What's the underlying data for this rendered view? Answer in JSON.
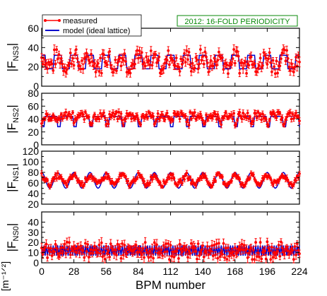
{
  "chart_data": {
    "type": "line",
    "annotation": "2012: 16-FOLD PERIODICITY",
    "annotation_color": "#0a8a0a",
    "legend": {
      "placement": "top-left",
      "entries": [
        {
          "label": "measured",
          "color": "#ff0000",
          "marker": "circle-with-errorbars"
        },
        {
          "label": "model (ideal lattice)",
          "color": "#0000cc",
          "marker": "line"
        }
      ]
    },
    "xlabel": "BPM number",
    "xlim": [
      0,
      224
    ],
    "xticks": [
      0,
      28,
      56,
      84,
      112,
      140,
      168,
      196,
      224
    ],
    "units_label": "[m⁻¹ᐟ²]",
    "panels": [
      {
        "ylabel_main": "|F",
        "ylabel_sub": "NS3",
        "ylabel_end": "|",
        "ylim": [
          0,
          60
        ],
        "yticks": [
          "0",
          "20",
          "40",
          "60"
        ],
        "model": {
          "kind": "steps",
          "low": 18,
          "high": 32
        },
        "measured": {
          "base": 27,
          "spread": 9,
          "err": 4
        }
      },
      {
        "ylabel_main": "|F",
        "ylabel_sub": "NS2",
        "ylabel_end": "|",
        "ylim": [
          0,
          80
        ],
        "yticks": [
          "0",
          "20",
          "40",
          "60",
          "80"
        ],
        "model": {
          "kind": "dips",
          "low": 28,
          "high": 44
        },
        "measured": {
          "base": 46,
          "spread": 6,
          "err": 4
        }
      },
      {
        "ylabel_main": "|F",
        "ylabel_sub": "NS1",
        "ylabel_end": "|",
        "ylim": [
          20,
          120
        ],
        "yticks": [
          "20",
          "40",
          "60",
          "80",
          "100",
          "120"
        ],
        "model": {
          "kind": "sine",
          "low": 50,
          "high": 80
        },
        "measured": {
          "base": 67,
          "spread": 5,
          "err": 4
        }
      },
      {
        "ylabel_main": "|F",
        "ylabel_sub": "NS0",
        "ylabel_end": "|",
        "ylim": [
          0,
          50
        ],
        "yticks": [
          "0",
          "10",
          "20",
          "30",
          "40"
        ],
        "model": {
          "kind": "zigzag",
          "low": 7,
          "high": 17
        },
        "measured": {
          "base": 12,
          "spread": 6,
          "err": 4
        }
      }
    ]
  }
}
